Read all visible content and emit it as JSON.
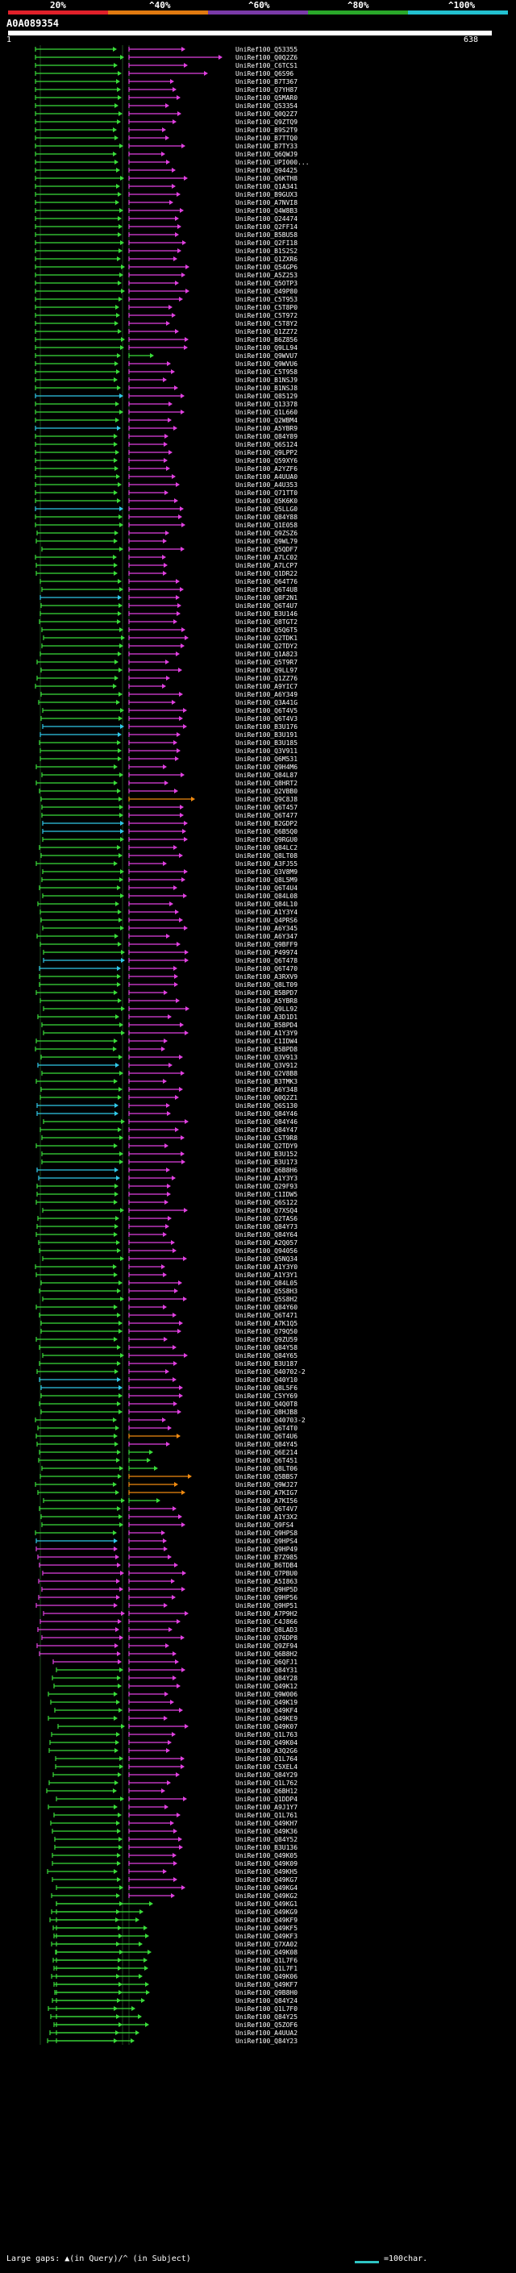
{
  "scale": {
    "ticks": [
      "20%",
      "^40%",
      "^60%",
      "^80%",
      "^100%"
    ],
    "colors": [
      "#e0202a",
      "#e07a10",
      "#7a3aa8",
      "#2aa82a",
      "#22c0d0"
    ]
  },
  "query": {
    "id": "A0A089354",
    "start": "1",
    "end": "638"
  },
  "colors": {
    "green": "#3adc3a",
    "magenta": "#e040e0",
    "cyan": "#30c8e8",
    "orange": "#f08a10",
    "label": "#ffffff"
  },
  "hits": [
    "UniRef100_Q53355",
    "UniRef100_Q0Q2Z6",
    "UniRef100_C6TCS1",
    "UniRef100_Q6S96",
    "UniRef100_B7T367",
    "UniRef100_Q7YH87",
    "UniRef100_Q5MAR0",
    "UniRef100_Q53354",
    "UniRef100_Q0Q2Z7",
    "UniRef100_Q9ZTQ9",
    "UniRef100_B9S2T9",
    "UniRef100_B7TTQ0",
    "UniRef100_B7TY33",
    "UniRef100_Q6QWJ9",
    "UniRef100_UPI000...",
    "UniRef100_Q94425",
    "UniRef100_Q6KTH8",
    "UniRef100_Q1A341",
    "UniRef100_B9GUX3",
    "UniRef100_A7NVI8",
    "UniRef100_Q4W8B3",
    "UniRef100_Q24474",
    "UniRef100_Q2FF14",
    "UniRef100_B5BU58",
    "UniRef100_Q2FI18",
    "UniRef100_B1S2S2",
    "UniRef100_Q1ZXR6",
    "UniRef100_Q54GP6",
    "UniRef100_A5Z253",
    "UniRef100_Q5OTP3",
    "UniRef100_Q49P80",
    "UniRef100_C5T953",
    "UniRef100_C5T8P0",
    "UniRef100_C5T972",
    "UniRef100_C5T8Y2",
    "UniRef100_Q1ZZ72",
    "UniRef100_B6Z856",
    "UniRef100_Q9LL94",
    "UniRef100_Q9WVU7",
    "UniRef100_Q9WVU6",
    "UniRef100_C5T958",
    "UniRef100_B1NSJ9",
    "UniRef100_B1NSJ8",
    "UniRef100_Q85129",
    "UniRef100_Q13378",
    "UniRef100_Q1L660",
    "UniRef100_Q2WBM4",
    "UniRef100_A5YBR9",
    "UniRef100_Q84Y89",
    "UniRef100_Q6S124",
    "UniRef100_Q9LPP2",
    "UniRef100_Q59XY6",
    "UniRef100_A2YZF6",
    "UniRef100_A4UUA0",
    "UniRef100_A4U353",
    "UniRef100_Q71TT0",
    "UniRef100_Q5K6K0",
    "UniRef100_Q5LLG0",
    "UniRef100_Q84Y88",
    "UniRef100_Q1E058",
    "UniRef100_Q9ZSZ6",
    "UniRef100_Q9WL79",
    "UniRef100_Q5QDF7",
    "UniRef100_A7LC02",
    "UniRef100_A7LCP7",
    "UniRef100_Q1DR22",
    "UniRef100_Q64T76",
    "UniRef100_Q6T4U8",
    "UniRef100_Q8F2N1",
    "UniRef100_Q6T4U7",
    "UniRef100_B3U146",
    "UniRef100_Q8TGT2",
    "UniRef100_Q5Q6T5",
    "UniRef100_Q2TDK1",
    "UniRef100_Q2TDY2",
    "UniRef100_Q1A823",
    "UniRef100_Q5T9R7",
    "UniRef100_Q9LL97",
    "UniRef100_Q1ZZ76",
    "UniRef100_A9YIC7",
    "UniRef100_A6Y349",
    "UniRef100_Q3A41G",
    "UniRef100_Q6T4V5",
    "UniRef100_Q6T4V3",
    "UniRef100_B3U176",
    "UniRef100_B3U191",
    "UniRef100_B3U185",
    "UniRef100_Q3V911",
    "UniRef100_Q6M531",
    "UniRef100_Q9H4M6",
    "UniRef100_Q84L87",
    "UniRef100_Q8HRT2",
    "UniRef100_Q2VBB0",
    "UniRef100_Q9C8J8",
    "UniRef100_Q6T457",
    "UniRef100_Q6T477",
    "UniRef100_B2GDP2",
    "UniRef100_Q6B5Q0",
    "UniRef100_Q9RGU0",
    "UniRef100_Q84LC2",
    "UniRef100_Q8LT08",
    "UniRef100_A3FJ55",
    "UniRef100_Q3V8M9",
    "UniRef100_Q8L5M9",
    "UniRef100_Q6T4U4",
    "UniRef100_Q84L08",
    "UniRef100_Q84L10",
    "UniRef100_A1Y3Y4",
    "UniRef100_Q4PRS6",
    "UniRef100_A6Y345",
    "UniRef100_A6Y347",
    "UniRef100_Q9BFF9",
    "UniRef100_P49974",
    "UniRef100_Q6T478",
    "UniRef100_Q6T470",
    "UniRef100_A3RXV9",
    "UniRef100_Q8LT09",
    "UniRef100_B5BPD7",
    "UniRef100_A5YBR8",
    "UniRef100_Q9LL92",
    "UniRef100_A3D1D1",
    "UniRef100_B5BPD4",
    "UniRef100_A1Y3Y9",
    "UniRef100_C1IDW4",
    "UniRef100_B5BPD8",
    "UniRef100_Q3V913",
    "UniRef100_Q3V912",
    "UniRef100_Q2V8B8",
    "UniRef100_B3TMK3",
    "UniRef100_A6Y348",
    "UniRef100_Q0Q2Z1",
    "UniRef100_Q6S130",
    "UniRef100_Q84Y46",
    "UniRef100_Q84Y46",
    "UniRef100_Q84Y47",
    "UniRef100_C5T9R8",
    "UniRef100_Q2TDY9",
    "UniRef100_B3U152",
    "UniRef100_B3U173",
    "UniRef100_Q6B8H6",
    "UniRef100_A1Y3Y3",
    "UniRef100_Q29F93",
    "UniRef100_C1IDW5",
    "UniRef100_Q6S122",
    "UniRef100_Q7XSQ4",
    "UniRef100_Q2TAS6",
    "UniRef100_Q84Y73",
    "UniRef100_Q84Y64",
    "UniRef100_A2Q057",
    "UniRef100_Q94056",
    "UniRef100_Q5NQ34",
    "UniRef100_A1Y3Y0",
    "UniRef100_A1Y3Y1",
    "UniRef100_Q84L05",
    "UniRef100_Q5S8H3",
    "UniRef100_Q5S8H2",
    "UniRef100_Q84Y60",
    "UniRef100_Q6T471",
    "UniRef100_A7K1Q5",
    "UniRef100_Q79Q50",
    "UniRef100_Q9ZU59",
    "UniRef100_Q84Y58",
    "UniRef100_Q84Y65",
    "UniRef100_B3U187",
    "UniRef100_Q40702-2",
    "UniRef100_Q40Y10",
    "UniRef100_Q8L5F6",
    "UniRef100_C5YY69",
    "UniRef100_Q4Q0T8",
    "UniRef100_Q8HJB8",
    "UniRef100_Q40703-2",
    "UniRef100_Q6T4T0",
    "UniRef100_Q6T4U6",
    "UniRef100_Q84Y45",
    "UniRef100_Q6E214",
    "UniRef100_Q6T451",
    "UniRef100_Q8LT06",
    "UniRef100_Q5BBS7",
    "UniRef100_Q9WJ27",
    "UniRef100_A7KIG7",
    "UniRef100_A7KI56",
    "UniRef100_Q6T4V7",
    "UniRef100_A1Y3X2",
    "UniRef100_Q9FS4",
    "UniRef100_Q9HPS8",
    "UniRef100_Q9HPS4",
    "UniRef100_Q9HP49",
    "UniRef100_B7Z985",
    "UniRef100_B6TDB4",
    "UniRef100_Q7PBU0",
    "UniRef100_A5I863",
    "UniRef100_Q9HP5D",
    "UniRef100_Q9HP56",
    "UniRef100_Q9HP51",
    "UniRef100_A7P9H2",
    "UniRef100_C4J866",
    "UniRef100_Q8LAD3",
    "UniRef100_Q76DP8",
    "UniRef100_Q9ZF94",
    "UniRef100_Q6B8H2",
    "UniRef100_Q6QFJ1",
    "UniRef100_Q84Y31",
    "UniRef100_Q84Y28",
    "UniRef100_Q49K12",
    "UniRef100_Q9W006",
    "UniRef100_Q49K19",
    "UniRef100_Q49KF4",
    "UniRef100_Q49KE9",
    "UniRef100_Q49K07",
    "UniRef100_Q1L763",
    "UniRef100_Q49K04",
    "UniRef100_A3Q2G6",
    "UniRef100_Q1L764",
    "UniRef100_C5XEL4",
    "UniRef100_Q84Y29",
    "UniRef100_Q1L762",
    "UniRef100_Q6BH12",
    "UniRef100_Q1DDP4",
    "UniRef100_A9J1Y7",
    "UniRef100_Q1L761",
    "UniRef100_Q49KH7",
    "UniRef100_Q49K36",
    "UniRef100_Q84Y52",
    "UniRef100_B3U136",
    "UniRef100_Q49K05",
    "UniRef100_Q49K09",
    "UniRef100_Q49KH5",
    "UniRef100_Q49KG7",
    "UniRef100_Q49KG4",
    "UniRef100_Q49KG2",
    "UniRef100_Q49KG1",
    "UniRef100_Q49KG9",
    "UniRef100_Q49KF9",
    "UniRef100_Q49KF5",
    "UniRef100_Q49KF3",
    "UniRef100_Q7XA02",
    "UniRef100_Q49K08",
    "UniRef100_Q1L7F6",
    "UniRef100_Q1L7F1",
    "UniRef100_Q49K06",
    "UniRef100_Q49KF7",
    "UniRef100_Q9B8H0",
    "UniRef100_Q84Y24",
    "UniRef100_Q1L7F0",
    "UniRef100_Q84Y25",
    "UniRef100_Q5ZOF6",
    "UniRef100_A4UUA2",
    "UniRef100_Q84Y23"
  ],
  "footer": {
    "gaps_text": "Large gaps: ▲(in Query)/^ (in Subject)",
    "legend_text": "=100char."
  }
}
